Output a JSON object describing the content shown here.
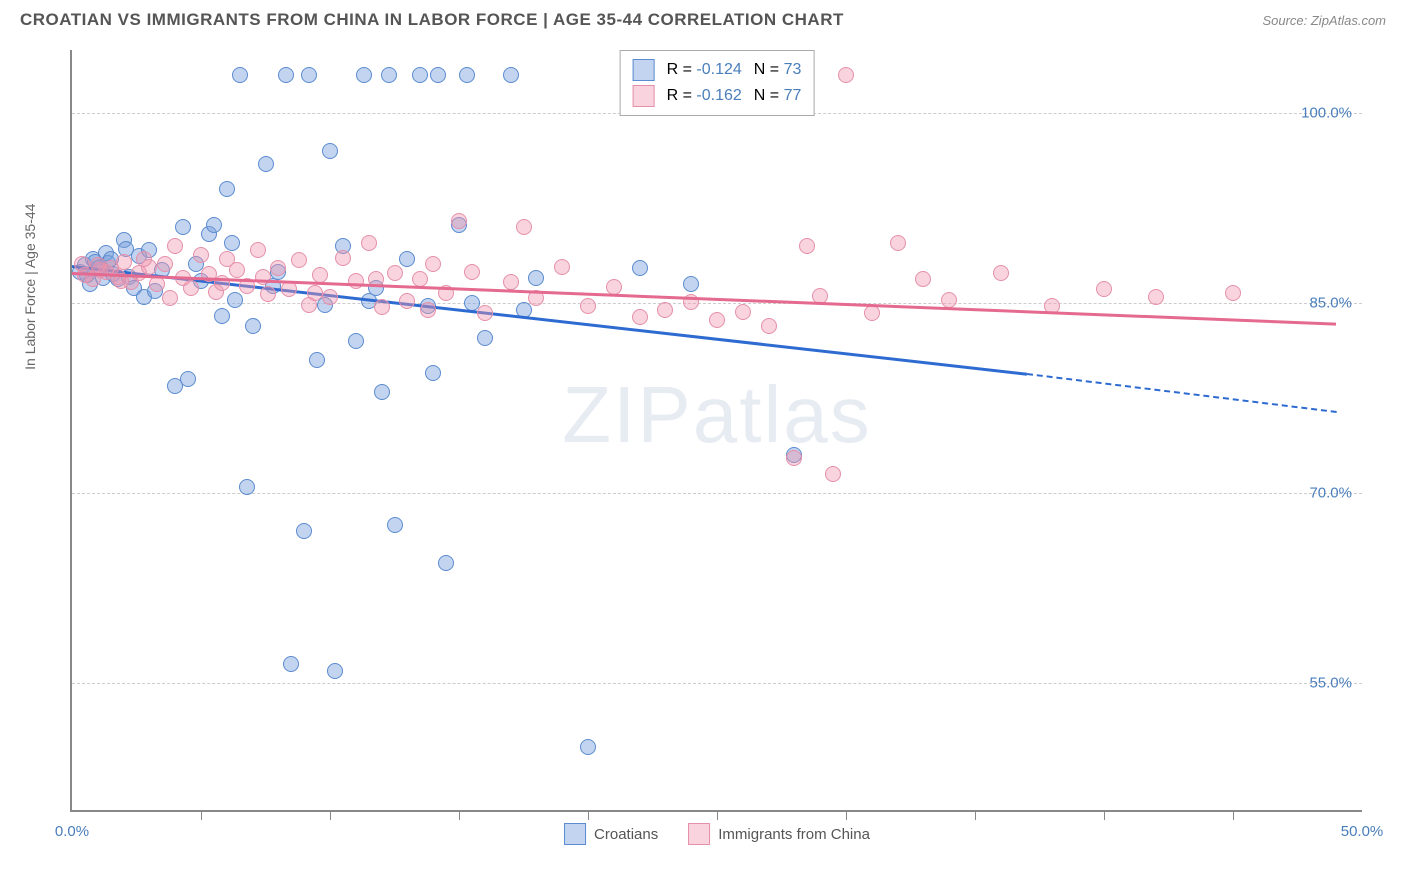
{
  "header": {
    "title": "CROATIAN VS IMMIGRANTS FROM CHINA IN LABOR FORCE | AGE 35-44 CORRELATION CHART",
    "source": "Source: ZipAtlas.com"
  },
  "watermark": "ZIPatlas",
  "chart": {
    "type": "scatter",
    "y_axis_title": "In Labor Force | Age 35-44",
    "x_min": 0.0,
    "x_max": 50.0,
    "y_min": 45.0,
    "y_max": 105.0,
    "x_ticks": [
      0.0,
      50.0
    ],
    "x_tick_marks": [
      5,
      10,
      15,
      20,
      25,
      30,
      35,
      40,
      45
    ],
    "y_ticks": [
      55.0,
      70.0,
      85.0,
      100.0
    ],
    "grid_color": "#cccccc",
    "axis_color": "#888888",
    "tick_label_color": "#4a7ebb",
    "background_color": "#ffffff",
    "point_radius": 8,
    "series": [
      {
        "name": "Croatians",
        "fill": "rgba(120,160,220,0.45)",
        "stroke": "#5b8bd0",
        "trend_color": "#2e6bd1",
        "R": "-0.124",
        "N": "73",
        "trend": {
          "x1": 0,
          "y1": 88.0,
          "x2": 37,
          "y2": 79.5,
          "x2_dash": 49,
          "y2_dash": 76.5
        },
        "points": [
          [
            0.3,
            87.5
          ],
          [
            0.5,
            88
          ],
          [
            0.7,
            86.5
          ],
          [
            0.8,
            88.5
          ],
          [
            1.0,
            87.8
          ],
          [
            1.2,
            87
          ],
          [
            1.3,
            89
          ],
          [
            1.4,
            88.2
          ],
          [
            1.6,
            87.3
          ],
          [
            1.8,
            86.9
          ],
          [
            2.0,
            90
          ],
          [
            2.2,
            87.1
          ],
          [
            2.4,
            86.2
          ],
          [
            2.6,
            88.7
          ],
          [
            2.8,
            85.5
          ],
          [
            3.0,
            89.2
          ],
          [
            3.5,
            87.6
          ],
          [
            4.0,
            78.5
          ],
          [
            4.3,
            91
          ],
          [
            4.5,
            79
          ],
          [
            5.0,
            86.8
          ],
          [
            5.3,
            90.5
          ],
          [
            5.5,
            91.2
          ],
          [
            5.8,
            84
          ],
          [
            6.0,
            94
          ],
          [
            6.3,
            85.3
          ],
          [
            6.5,
            103
          ],
          [
            6.8,
            70.5
          ],
          [
            7.0,
            83.2
          ],
          [
            7.5,
            96
          ],
          [
            8.0,
            87.5
          ],
          [
            8.3,
            103
          ],
          [
            8.5,
            56.5
          ],
          [
            9.0,
            67
          ],
          [
            9.2,
            103
          ],
          [
            9.5,
            80.5
          ],
          [
            10.0,
            97
          ],
          [
            10.2,
            56
          ],
          [
            10.5,
            89.5
          ],
          [
            11.0,
            82
          ],
          [
            11.3,
            103
          ],
          [
            11.5,
            85.2
          ],
          [
            12.0,
            78
          ],
          [
            12.3,
            103
          ],
          [
            12.5,
            67.5
          ],
          [
            13.0,
            88.5
          ],
          [
            13.5,
            103
          ],
          [
            14.0,
            79.5
          ],
          [
            14.2,
            103
          ],
          [
            14.5,
            64.5
          ],
          [
            15.0,
            91.2
          ],
          [
            15.3,
            103
          ],
          [
            15.5,
            85
          ],
          [
            16.0,
            82.3
          ],
          [
            17.0,
            103
          ],
          [
            17.5,
            84.5
          ],
          [
            18.0,
            87
          ],
          [
            20.0,
            50
          ],
          [
            22.0,
            87.8
          ],
          [
            24.0,
            86.5
          ],
          [
            28.0,
            73
          ],
          [
            1.5,
            88.5
          ],
          [
            2.1,
            89.3
          ],
          [
            3.2,
            86
          ],
          [
            4.8,
            88.1
          ],
          [
            6.2,
            89.8
          ],
          [
            7.8,
            86.4
          ],
          [
            9.8,
            84.9
          ],
          [
            11.8,
            86.2
          ],
          [
            13.8,
            84.8
          ],
          [
            1.1,
            87.9
          ],
          [
            0.9,
            88.3
          ],
          [
            0.6,
            87.2
          ]
        ]
      },
      {
        "name": "Immigrants from China",
        "fill": "rgba(240,150,175,0.42)",
        "stroke": "#e590aa",
        "trend_color": "#e56a90",
        "R": "-0.162",
        "N": "77",
        "trend": {
          "x1": 0,
          "y1": 87.5,
          "x2": 49,
          "y2": 83.5
        },
        "points": [
          [
            0.5,
            87.2
          ],
          [
            0.8,
            86.9
          ],
          [
            1.0,
            88
          ],
          [
            1.3,
            87.5
          ],
          [
            1.5,
            87.8
          ],
          [
            1.8,
            87.1
          ],
          [
            2.0,
            88.3
          ],
          [
            2.3,
            86.7
          ],
          [
            2.6,
            87.4
          ],
          [
            3.0,
            87.9
          ],
          [
            3.3,
            86.5
          ],
          [
            3.6,
            88.1
          ],
          [
            4.0,
            89.5
          ],
          [
            4.3,
            87
          ],
          [
            4.6,
            86.2
          ],
          [
            5.0,
            88.8
          ],
          [
            5.3,
            87.3
          ],
          [
            5.6,
            85.9
          ],
          [
            6.0,
            88.5
          ],
          [
            6.4,
            87.6
          ],
          [
            6.8,
            86.4
          ],
          [
            7.2,
            89.2
          ],
          [
            7.6,
            85.7
          ],
          [
            8.0,
            87.8
          ],
          [
            8.4,
            86.1
          ],
          [
            8.8,
            88.4
          ],
          [
            9.2,
            84.9
          ],
          [
            9.6,
            87.2
          ],
          [
            10.0,
            85.5
          ],
          [
            10.5,
            88.6
          ],
          [
            11.0,
            86.8
          ],
          [
            11.5,
            89.8
          ],
          [
            12.0,
            84.7
          ],
          [
            12.5,
            87.4
          ],
          [
            13.0,
            85.2
          ],
          [
            13.5,
            86.9
          ],
          [
            14.0,
            88.1
          ],
          [
            14.5,
            85.8
          ],
          [
            15.0,
            91.5
          ],
          [
            15.5,
            87.5
          ],
          [
            16.0,
            84.2
          ],
          [
            17.0,
            86.7
          ],
          [
            17.5,
            91
          ],
          [
            18.0,
            85.4
          ],
          [
            19.0,
            87.9
          ],
          [
            20.0,
            84.8
          ],
          [
            21.0,
            86.3
          ],
          [
            22.0,
            83.9
          ],
          [
            23.0,
            84.5
          ],
          [
            24.0,
            85.1
          ],
          [
            25.0,
            83.7
          ],
          [
            26.0,
            84.3
          ],
          [
            27.0,
            83.2
          ],
          [
            28.0,
            72.8
          ],
          [
            28.5,
            89.5
          ],
          [
            29.0,
            85.6
          ],
          [
            29.5,
            71.5
          ],
          [
            30.0,
            103
          ],
          [
            31.0,
            84.2
          ],
          [
            32.0,
            89.8
          ],
          [
            33.0,
            86.9
          ],
          [
            34.0,
            85.3
          ],
          [
            36.0,
            87.4
          ],
          [
            38.0,
            84.8
          ],
          [
            40.0,
            86.1
          ],
          [
            42.0,
            85.5
          ],
          [
            45.0,
            85.8
          ],
          [
            0.4,
            88.1
          ],
          [
            1.1,
            87.6
          ],
          [
            1.9,
            86.8
          ],
          [
            2.8,
            88.5
          ],
          [
            3.8,
            85.4
          ],
          [
            5.8,
            86.6
          ],
          [
            7.4,
            87.1
          ],
          [
            9.4,
            85.8
          ],
          [
            11.8,
            86.9
          ],
          [
            13.8,
            84.5
          ]
        ]
      }
    ],
    "legend_bottom": [
      {
        "label": "Croatians",
        "fill": "rgba(120,160,220,0.45)",
        "stroke": "#5b8bd0"
      },
      {
        "label": "Immigrants from China",
        "fill": "rgba(240,150,175,0.42)",
        "stroke": "#e590aa"
      }
    ]
  }
}
